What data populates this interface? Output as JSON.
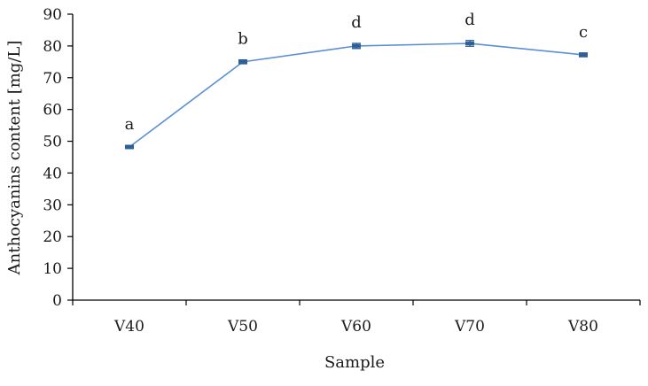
{
  "chart_data": {
    "type": "line",
    "title": "",
    "xlabel": "Sample",
    "ylabel": "Anthocyanins content [mg/L]",
    "categories": [
      "V40",
      "V50",
      "V60",
      "V70",
      "V80"
    ],
    "series": [
      {
        "values": [
          48.2,
          75.0,
          80.0,
          80.8,
          77.2
        ],
        "errors": [
          0.5,
          0.6,
          0.8,
          0.9,
          0.6
        ],
        "significance": [
          "a",
          "b",
          "d",
          "d",
          "c"
        ]
      }
    ],
    "ylim": [
      0,
      90
    ],
    "yticks": [
      0,
      10,
      20,
      30,
      40,
      50,
      60,
      70,
      80,
      90
    ],
    "grid": false,
    "legend": "none",
    "colors": {
      "line": "#5b8fd4",
      "marker": "#2f5f9a",
      "axis": "#000000"
    }
  }
}
